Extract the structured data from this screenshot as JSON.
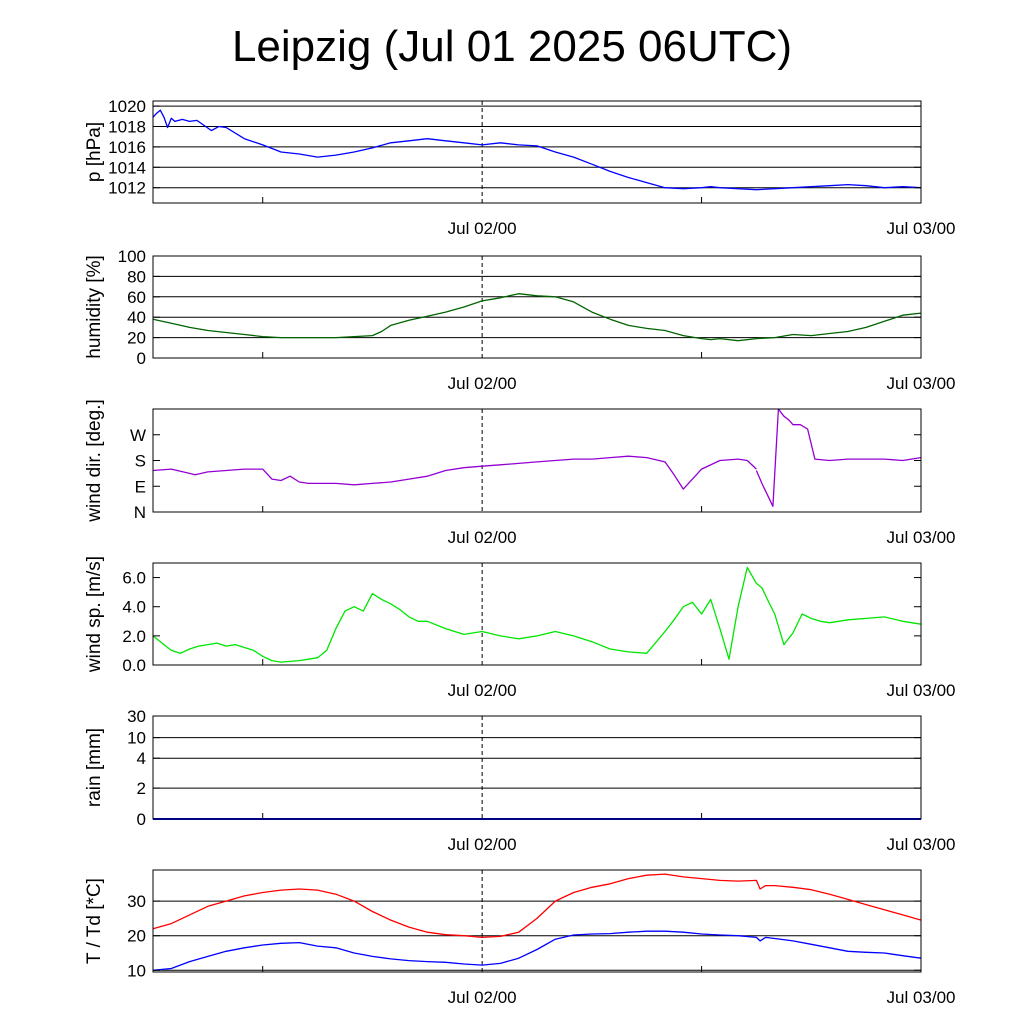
{
  "title": "Leipzig (Jul 01 2025 06UTC)",
  "colors": {
    "grid": "#000000",
    "pressure": "#0000ff",
    "humidity": "#006400",
    "wind_dir": "#9400d3",
    "wind_speed": "#00e600",
    "rain": "#0000ff",
    "temperature": "#ff0000",
    "dewpoint": "#0000ff"
  },
  "chart_data": [
    {
      "type": "line",
      "ylabel": "p [hPa]",
      "x_ticks": [
        "Jul 02/00",
        "Jul 03/00"
      ],
      "x_range_hours": [
        0,
        42
      ],
      "ylim": [
        1010.5,
        1020.5
      ],
      "yticks": [
        1012,
        1014,
        1016,
        1018,
        1020
      ],
      "ytick_labels": [
        "1012",
        "1014",
        "1016",
        "1018",
        "1020"
      ],
      "grid": "horizontal",
      "series": [
        {
          "color": "pressure",
          "x": [
            0,
            0.2,
            0.4,
            0.6,
            0.8,
            1.0,
            1.2,
            1.6,
            2.0,
            2.4,
            2.8,
            3.2,
            3.6,
            4.0,
            5.0,
            6.0,
            7.0,
            8.0,
            9.0,
            10.0,
            11.0,
            12.0,
            13.0,
            14.0,
            15.0,
            16.0,
            17.0,
            18.0,
            19.0,
            20.0,
            21.0,
            22.0,
            23.0,
            24.0,
            25.0,
            26.0,
            27.0,
            28.0,
            29.0,
            30.0,
            30.5,
            31.0,
            32.0,
            33.0,
            34.0,
            35.0,
            36.0,
            37.0,
            38.0,
            39.0,
            40.0,
            41.0,
            42.0
          ],
          "y": [
            1018.9,
            1019.3,
            1019.6,
            1018.9,
            1017.9,
            1018.8,
            1018.5,
            1018.7,
            1018.5,
            1018.6,
            1018.1,
            1017.6,
            1018.0,
            1017.9,
            1016.8,
            1016.2,
            1015.5,
            1015.3,
            1015.0,
            1015.2,
            1015.5,
            1015.9,
            1016.4,
            1016.6,
            1016.8,
            1016.6,
            1016.4,
            1016.2,
            1016.4,
            1016.2,
            1016.1,
            1015.5,
            1015.0,
            1014.3,
            1013.6,
            1013.0,
            1012.5,
            1012.0,
            1011.9,
            1012.0,
            1012.1,
            1012.0,
            1011.9,
            1011.8,
            1011.9,
            1012.0,
            1012.1,
            1012.2,
            1012.3,
            1012.2,
            1012.0,
            1012.1,
            1012.0
          ]
        }
      ]
    },
    {
      "type": "line",
      "ylabel": "humidity [%]",
      "x_ticks": [
        "Jul 02/00",
        "Jul 03/00"
      ],
      "x_range_hours": [
        0,
        42
      ],
      "ylim": [
        0,
        100
      ],
      "yticks": [
        0,
        20,
        40,
        60,
        80,
        100
      ],
      "ytick_labels": [
        "0",
        "20",
        "40",
        "60",
        "80",
        "100"
      ],
      "grid": "horizontal",
      "series": [
        {
          "color": "humidity",
          "x": [
            0,
            1,
            2,
            3,
            4,
            5,
            6,
            7,
            8,
            9,
            10,
            11,
            12,
            12.5,
            13,
            14,
            15,
            16,
            17,
            18,
            19,
            20,
            21,
            22,
            23,
            24,
            25,
            26,
            27,
            28,
            29,
            30,
            30.5,
            31,
            32,
            33,
            34,
            35,
            36,
            37,
            38,
            39,
            40,
            41,
            42
          ],
          "y": [
            38,
            34,
            30,
            27,
            25,
            23,
            21,
            20,
            20,
            20,
            20,
            21,
            22,
            26,
            32,
            37,
            41,
            45,
            50,
            56,
            59,
            63,
            61,
            60,
            55,
            45,
            38,
            32,
            29,
            27,
            22,
            19,
            18,
            19,
            17,
            19,
            20,
            23,
            22,
            24,
            26,
            30,
            36,
            42,
            44
          ]
        }
      ]
    },
    {
      "type": "line",
      "ylabel": "wind dir. [deg.]",
      "x_ticks": [
        "Jul 02/00",
        "Jul 03/00"
      ],
      "x_range_hours": [
        0,
        42
      ],
      "ylim": [
        0,
        360
      ],
      "yticks": [
        0,
        90,
        180,
        270
      ],
      "ytick_labels": [
        "N",
        "E",
        "S",
        "W"
      ],
      "grid": "none",
      "series": [
        {
          "color": "wind_dir",
          "x": [
            0,
            1,
            2,
            2.3,
            3,
            4,
            5,
            6,
            6.5,
            7,
            7.5,
            8,
            8.5,
            9,
            10,
            11,
            12,
            13,
            14,
            15,
            16,
            17,
            18,
            19,
            20,
            21,
            22,
            23,
            24,
            25,
            26,
            27,
            28,
            28.5,
            29,
            30,
            31,
            32,
            32.5,
            33
          ],
          "y": [
            145,
            150,
            135,
            130,
            140,
            145,
            150,
            150,
            115,
            110,
            125,
            105,
            100,
            100,
            100,
            95,
            100,
            105,
            115,
            125,
            145,
            155,
            160,
            165,
            170,
            175,
            180,
            185,
            185,
            190,
            195,
            190,
            175,
            130,
            80,
            150,
            180,
            185,
            180,
            150
          ]
        },
        {
          "color": "wind_dir",
          "x": [
            33.0,
            33.3,
            33.6,
            33.9,
            34.2,
            34.5,
            34.8,
            35.0,
            35.4,
            35.8,
            36.2,
            37,
            38,
            39,
            40,
            41,
            42
          ],
          "y": [
            145,
            100,
            60,
            20,
            360,
            335,
            320,
            305,
            305,
            290,
            185,
            180,
            185,
            185,
            185,
            180,
            190
          ]
        }
      ]
    },
    {
      "type": "line",
      "ylabel": "wind sp. [m/s]",
      "x_ticks": [
        "Jul 02/00",
        "Jul 03/00"
      ],
      "x_range_hours": [
        0,
        42
      ],
      "ylim": [
        0,
        7
      ],
      "yticks": [
        0,
        2,
        4,
        6
      ],
      "ytick_labels": [
        "0.0",
        "2.0",
        "4.0",
        "6.0"
      ],
      "grid": "none",
      "series": [
        {
          "color": "wind_speed",
          "x": [
            0,
            0.5,
            1,
            1.5,
            2,
            2.5,
            3,
            3.5,
            4,
            4.5,
            5,
            5.5,
            6,
            6.5,
            7,
            7.5,
            8,
            8.5,
            9,
            9.5,
            10,
            10.5,
            11,
            11.5,
            12,
            12.5,
            13,
            13.5,
            14,
            14.5,
            15,
            16,
            17,
            18,
            19,
            20,
            21,
            22,
            23,
            24,
            25,
            26,
            27,
            28,
            28.5,
            29,
            29.5,
            30,
            30.5,
            31,
            31.5,
            32,
            32.5,
            33,
            33.3,
            33.6,
            34,
            34.5,
            35,
            35.5,
            36,
            36.5,
            37,
            37.5,
            38,
            39,
            40,
            41,
            42
          ],
          "y": [
            2.0,
            1.5,
            1.0,
            0.8,
            1.1,
            1.3,
            1.4,
            1.5,
            1.3,
            1.4,
            1.2,
            1.0,
            0.6,
            0.3,
            0.2,
            0.25,
            0.3,
            0.4,
            0.5,
            1.0,
            2.5,
            3.7,
            4.0,
            3.7,
            4.9,
            4.5,
            4.2,
            3.8,
            3.3,
            3.0,
            3.0,
            2.5,
            2.1,
            2.3,
            2.0,
            1.8,
            2.0,
            2.3,
            2.0,
            1.6,
            1.1,
            0.9,
            0.8,
            2.3,
            3.1,
            4.0,
            4.3,
            3.5,
            4.5,
            2.5,
            0.4,
            4.0,
            6.7,
            5.6,
            5.3,
            4.5,
            3.5,
            1.4,
            2.2,
            3.5,
            3.2,
            3.0,
            2.9,
            3.0,
            3.1,
            3.2,
            3.3,
            3.0,
            2.8
          ]
        }
      ]
    },
    {
      "type": "line",
      "ylabel": "rain [mm]",
      "x_ticks": [
        "Jul 02/00",
        "Jul 03/00"
      ],
      "x_range_hours": [
        0,
        42
      ],
      "yticks": [
        0,
        2,
        4,
        10,
        30
      ],
      "ytick_labels": [
        "0",
        "2",
        "4",
        "10",
        "30"
      ],
      "grid": "horizontal",
      "series": [
        {
          "color": "rain",
          "x": [
            0,
            42
          ],
          "y": [
            0,
            0
          ]
        }
      ]
    },
    {
      "type": "line",
      "ylabel": "T / Td [*C]",
      "x_ticks": [
        "Jul 02/00",
        "Jul 03/00"
      ],
      "x_range_hours": [
        0,
        42
      ],
      "ylim": [
        9.5,
        39
      ],
      "yticks": [
        10,
        20,
        30
      ],
      "ytick_labels": [
        "10",
        "20",
        "30"
      ],
      "grid": "horizontal",
      "series": [
        {
          "color": "temperature",
          "x": [
            0,
            1,
            2,
            3,
            4,
            5,
            6,
            7,
            8,
            9,
            10,
            11,
            12,
            13,
            14,
            15,
            16,
            17,
            18,
            19,
            20,
            21,
            22,
            23,
            24,
            25,
            26,
            27,
            28,
            29,
            30,
            31,
            32,
            33,
            33.2,
            33.5,
            34,
            35,
            36,
            37,
            38,
            39,
            40,
            41,
            42
          ],
          "y": [
            22,
            23.5,
            26,
            28.5,
            30,
            31.5,
            32.5,
            33.2,
            33.5,
            33.2,
            32,
            30,
            27,
            24.5,
            22.5,
            21,
            20.3,
            20,
            19.5,
            19.8,
            21,
            25,
            30,
            32.5,
            34,
            35,
            36.5,
            37.5,
            37.8,
            37,
            36.5,
            36,
            35.8,
            36,
            33.5,
            34.5,
            34.5,
            34,
            33.3,
            32,
            30.5,
            29,
            27.5,
            26,
            24.5
          ]
        },
        {
          "color": "dewpoint",
          "x": [
            0,
            1,
            2,
            3,
            4,
            5,
            6,
            7,
            8,
            9,
            10,
            11,
            12,
            13,
            14,
            15,
            16,
            17,
            18,
            19,
            20,
            21,
            22,
            23,
            24,
            25,
            26,
            27,
            28,
            29,
            30,
            31,
            32,
            33,
            33.2,
            33.5,
            34,
            35,
            36,
            37,
            38,
            39,
            40,
            41,
            42
          ],
          "y": [
            10,
            10.5,
            12.5,
            14,
            15.5,
            16.5,
            17.3,
            17.8,
            18,
            17,
            16.5,
            15,
            14,
            13.3,
            12.8,
            12.5,
            12.3,
            11.8,
            11.5,
            12,
            13.5,
            16,
            19,
            20.2,
            20.5,
            20.6,
            21,
            21.3,
            21.3,
            21,
            20.5,
            20.2,
            20,
            19.5,
            18.5,
            19.5,
            19.2,
            18.5,
            17.5,
            16.5,
            15.5,
            15.2,
            15,
            14.2,
            13.5
          ]
        }
      ]
    }
  ]
}
